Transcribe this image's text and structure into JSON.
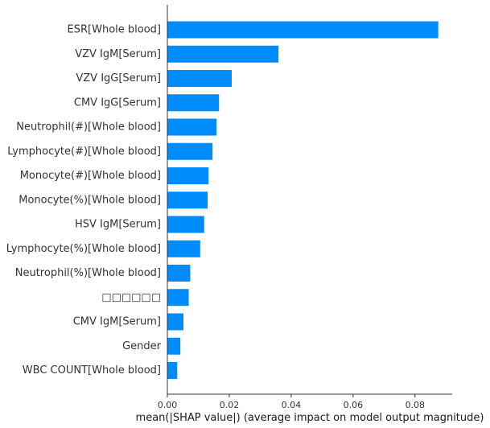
{
  "chart_data": {
    "type": "bar",
    "orientation": "horizontal",
    "categories": [
      "ESR[Whole blood]",
      "VZV IgM[Serum]",
      "VZV IgG[Serum]",
      "CMV IgG[Serum]",
      "Neutrophil(#)[Whole blood]",
      "Lymphocyte(#)[Whole blood]",
      "Monocyte(#)[Whole blood]",
      "Monocyte(%)[Whole blood]",
      "HSV IgM[Serum]",
      "Lymphocyte(%)[Whole blood]",
      "Neutrophil(%)[Whole blood]",
      "□□□□□□",
      "CMV IgM[Serum]",
      "Gender",
      "WBC COUNT[Whole blood]"
    ],
    "values": [
      0.0875,
      0.0359,
      0.0208,
      0.0167,
      0.0159,
      0.0146,
      0.0133,
      0.013,
      0.0119,
      0.0106,
      0.0074,
      0.0069,
      0.0052,
      0.0042,
      0.0032
    ],
    "xlabel": "mean(|SHAP value|) (average impact on model output magnitude)",
    "ylabel": "",
    "title": "",
    "xlim": [
      0,
      0.092
    ],
    "xticks": [
      0.0,
      0.02,
      0.04,
      0.06,
      0.08
    ],
    "xtick_labels": [
      "0.00",
      "0.02",
      "0.04",
      "0.06",
      "0.08"
    ],
    "grid": false,
    "bar_color": "#008bfb"
  }
}
